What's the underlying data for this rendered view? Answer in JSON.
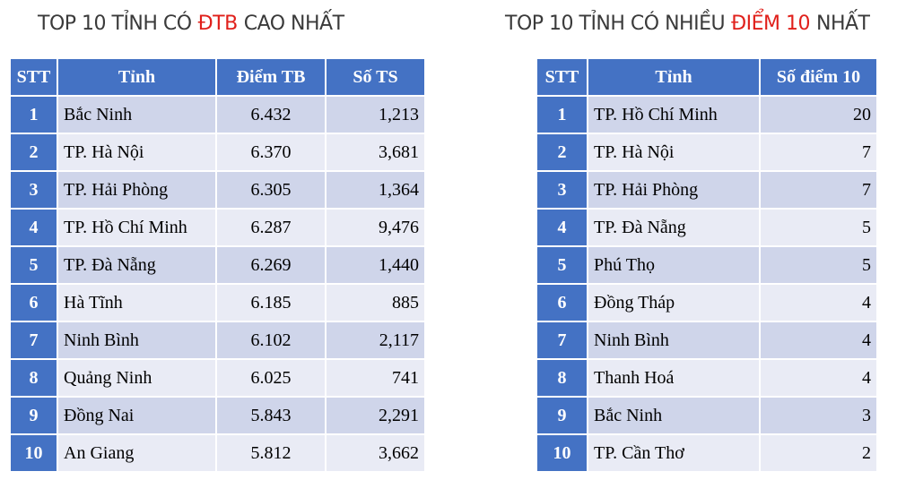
{
  "tables": [
    {
      "title": [
        "TOP 10 TỈNH CÓ",
        "ĐTB",
        "CAO NHẤT"
      ],
      "columns": [
        "STT",
        "Tỉnh",
        "Điểm TB",
        "Số TS"
      ],
      "rows": [
        [
          "1",
          "Bắc Ninh",
          "6.432",
          "1,213"
        ],
        [
          "2",
          "TP. Hà Nội",
          "6.370",
          "3,681"
        ],
        [
          "3",
          "TP. Hải Phòng",
          "6.305",
          "1,364"
        ],
        [
          "4",
          "TP. Hồ Chí Minh",
          "6.287",
          "9,476"
        ],
        [
          "5",
          "TP. Đà Nẵng",
          "6.269",
          "1,440"
        ],
        [
          "6",
          "Hà Tĩnh",
          "6.185",
          "885"
        ],
        [
          "7",
          "Ninh Bình",
          "6.102",
          "2,117"
        ],
        [
          "8",
          "Quảng Ninh",
          "6.025",
          "741"
        ],
        [
          "9",
          "Đồng Nai",
          "5.843",
          "2,291"
        ],
        [
          "10",
          "An Giang",
          "5.812",
          "3,662"
        ]
      ]
    },
    {
      "title": [
        "TOP 10 TỈNH CÓ NHIỀU",
        "ĐIỂM 10",
        "NHẤT"
      ],
      "columns": [
        "STT",
        "Tỉnh",
        "Số điểm 10"
      ],
      "rows": [
        [
          "1",
          "TP. Hồ Chí Minh",
          "20"
        ],
        [
          "2",
          "TP. Hà Nội",
          "7"
        ],
        [
          "3",
          "TP. Hải Phòng",
          "7"
        ],
        [
          "4",
          "TP. Đà Nẵng",
          "5"
        ],
        [
          "5",
          "Phú Thọ",
          "5"
        ],
        [
          "6",
          "Đồng Tháp",
          "4"
        ],
        [
          "7",
          "Ninh Bình",
          "4"
        ],
        [
          "8",
          "Thanh Hoá",
          "4"
        ],
        [
          "9",
          "Bắc Ninh",
          "3"
        ],
        [
          "10",
          "TP. Cần Thơ",
          "2"
        ]
      ]
    }
  ]
}
